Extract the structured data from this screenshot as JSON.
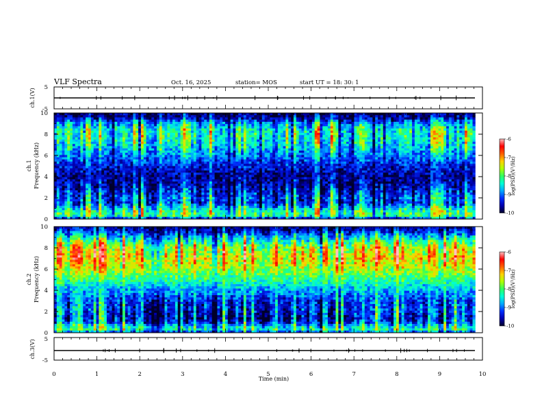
{
  "header": {
    "title": "VLF Spectra",
    "date": "Oct. 16, 2025",
    "station": "station= MOS",
    "start": "start  UT =   18: 30: 1"
  },
  "chart_data": [
    {
      "type": "line",
      "name": "ch1_waveform",
      "ylabel": "ch.1(V)",
      "ylim": [
        -5,
        5
      ],
      "yticks": [
        "5",
        "-5"
      ],
      "xlim": [
        0,
        10
      ],
      "data_end": 9.83
    },
    {
      "type": "heatmap",
      "name": "ch1_spectrogram",
      "ylabel": "ch.1\nFrequency (kHz)",
      "ylim": [
        0,
        10
      ],
      "yticks": [
        "0",
        "2",
        "4",
        "6",
        "8",
        "10"
      ],
      "xlim": [
        0,
        10
      ],
      "data_end": 9.83,
      "colorbar": {
        "label": "log(PSD)(V²/Hz)",
        "range": [
          -10,
          -6
        ],
        "ticks": [
          "-6",
          "-7",
          "-8",
          "-9",
          "-10"
        ]
      },
      "profile_freq_khz": [
        0,
        0.3,
        0.6,
        1.0,
        1.5,
        2.0,
        3.0,
        4.0,
        5.0,
        6.0,
        7.0,
        8.0,
        8.5,
        9.0,
        9.5,
        10.0
      ],
      "profile_level": [
        -9.6,
        -8.3,
        -8.1,
        -8.6,
        -9.3,
        -9.2,
        -9.6,
        -9.7,
        -9.4,
        -9.0,
        -8.6,
        -8.4,
        -8.5,
        -8.9,
        -9.6,
        -9.9
      ]
    },
    {
      "type": "heatmap",
      "name": "ch2_spectrogram",
      "ylabel": "ch.2\nFrequency (kHz)",
      "ylim": [
        0,
        10
      ],
      "yticks": [
        "0",
        "2",
        "4",
        "6",
        "8",
        "10"
      ],
      "xlim": [
        0,
        10
      ],
      "data_end": 9.83,
      "colorbar": {
        "label": "log(PSD)(V²/Hz)",
        "range": [
          -10,
          -6
        ],
        "ticks": [
          "-6",
          "-7",
          "-8",
          "-9",
          "-10"
        ]
      },
      "profile_freq_khz": [
        0,
        0.3,
        0.6,
        1.0,
        1.5,
        2.0,
        3.0,
        4.0,
        5.0,
        6.0,
        7.0,
        8.0,
        8.5,
        9.0,
        9.5,
        10.0
      ],
      "profile_level": [
        -9.4,
        -8.4,
        -8.6,
        -9.4,
        -9.6,
        -9.4,
        -9.3,
        -8.8,
        -8.2,
        -7.7,
        -7.4,
        -7.7,
        -8.2,
        -8.8,
        -9.4,
        -9.8
      ]
    },
    {
      "type": "line",
      "name": "ch3_waveform",
      "ylabel": "ch.3(V)",
      "ylim": [
        -5,
        5
      ],
      "yticks": [
        "5",
        "-5"
      ],
      "xlim": [
        0,
        10
      ],
      "xlabel": "Time  (min)",
      "xticks": [
        "0",
        "1",
        "2",
        "3",
        "4",
        "5",
        "6",
        "7",
        "8",
        "9",
        "10"
      ],
      "data_end": 9.83
    }
  ],
  "colors": {
    "colormap": [
      "#00002a",
      "#0000b0",
      "#0030ff",
      "#00aaff",
      "#00ffd5",
      "#30ff60",
      "#b0ff00",
      "#ffd000",
      "#ff6000",
      "#ff0000",
      "#ffc0c0"
    ],
    "trace": "#000000"
  }
}
